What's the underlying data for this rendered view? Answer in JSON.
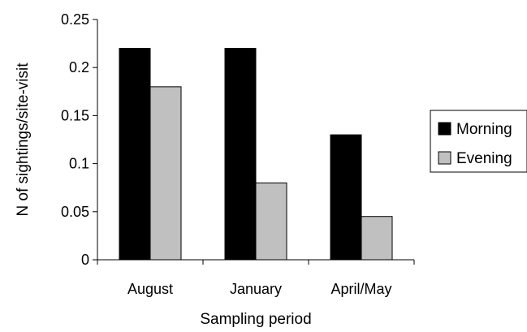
{
  "chart_data": {
    "type": "bar",
    "title": "",
    "xlabel": "Sampling period",
    "ylabel": "N of sightings/site-visit",
    "categories": [
      "August",
      "January",
      "April/May"
    ],
    "series": [
      {
        "name": "Morning",
        "values": [
          0.22,
          0.22,
          0.13
        ],
        "color": "#000000"
      },
      {
        "name": "Evening",
        "values": [
          0.18,
          0.08,
          0.045
        ],
        "color": "#c0c0c0"
      }
    ],
    "ylim": [
      0,
      0.25
    ],
    "yticks": [
      "0",
      "0.05",
      "0.1",
      "0.15",
      "0.2",
      "0.25"
    ],
    "grid": false,
    "legend_position": "right"
  }
}
